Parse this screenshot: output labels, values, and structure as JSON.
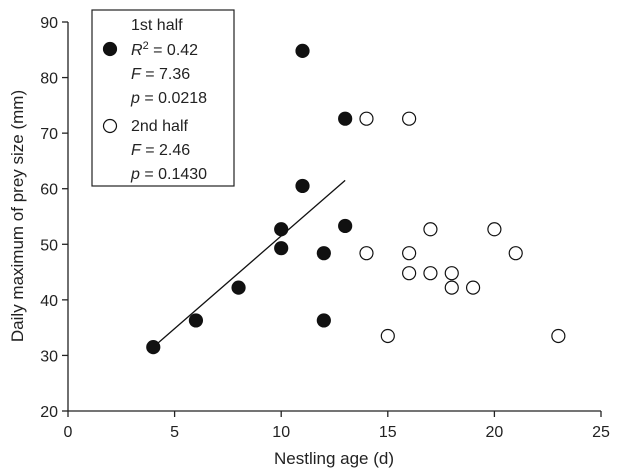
{
  "chart_data": {
    "type": "scatter",
    "xlabel": "Nestling age (d)",
    "ylabel": "Daily maximum of prey size (mm)",
    "xlim": [
      0,
      25
    ],
    "ylim": [
      20,
      90
    ],
    "xticks": [
      0,
      5,
      10,
      15,
      20,
      25
    ],
    "yticks": [
      20,
      30,
      40,
      50,
      60,
      70,
      80,
      90
    ],
    "grid": false,
    "legend_position": "top-left",
    "series": [
      {
        "name": "1st half",
        "marker": "filled-circle",
        "color": "#111111",
        "stats": [
          "R",
          "2",
          " = 0.42",
          "F",
          " = 7.36",
          "p",
          " = 0.0218"
        ],
        "points": [
          [
            4,
            31.5
          ],
          [
            6,
            36.3
          ],
          [
            8,
            42.2
          ],
          [
            10,
            52.7
          ],
          [
            10,
            49.3
          ],
          [
            11,
            84.8
          ],
          [
            11,
            60.5
          ],
          [
            12,
            48.4
          ],
          [
            12,
            36.3
          ],
          [
            13,
            72.6
          ],
          [
            13,
            53.3
          ]
        ],
        "fit_line": [
          [
            4,
            31.5
          ],
          [
            13,
            61.5
          ]
        ]
      },
      {
        "name": "2nd half",
        "marker": "open-circle",
        "color": "#111111",
        "stats": [
          "F",
          " = 2.46",
          "p",
          " = 0.1430"
        ],
        "points": [
          [
            14,
            72.6
          ],
          [
            14,
            48.4
          ],
          [
            15,
            33.5
          ],
          [
            16,
            72.6
          ],
          [
            16,
            48.4
          ],
          [
            16,
            44.8
          ],
          [
            17,
            52.7
          ],
          [
            17,
            44.8
          ],
          [
            18,
            44.8
          ],
          [
            18,
            42.2
          ],
          [
            19,
            42.2
          ],
          [
            20,
            52.7
          ],
          [
            21,
            48.4
          ],
          [
            23,
            33.5
          ]
        ]
      }
    ]
  }
}
